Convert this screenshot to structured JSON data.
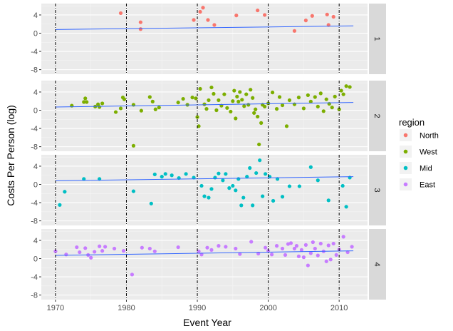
{
  "chart_data": {
    "type": "scatter",
    "title": "",
    "xlabel": "Event Year",
    "ylabel": "Costs Per Person (log)",
    "xlim": [
      1968,
      2014
    ],
    "ylim": [
      -9,
      6.5
    ],
    "x_ticks": [
      1970,
      1980,
      1990,
      2000,
      2010
    ],
    "y_ticks": [
      -8,
      -4,
      0,
      4
    ],
    "x_tick_labels": [
      "1970",
      "1980",
      "1990",
      "2000",
      "2010"
    ],
    "y_tick_labels": [
      "-8",
      "-4",
      "0",
      "4"
    ],
    "vlines": [
      1970,
      1980,
      1990,
      2000,
      2010
    ],
    "grid": true,
    "legend": {
      "title": "region",
      "placement": "right",
      "entries": [
        {
          "label": "North",
          "color": "#F8766D"
        },
        {
          "label": "West",
          "color": "#7CAE00"
        },
        {
          "label": "Mid",
          "color": "#00BFC4"
        },
        {
          "label": "East",
          "color": "#C77CFF"
        }
      ]
    },
    "panels": [
      {
        "label": "1",
        "region": "North",
        "color": "#F8766D",
        "trend": {
          "x": [
            1970,
            2012
          ],
          "y": [
            0.8,
            1.6
          ]
        },
        "points": [
          [
            1979.2,
            4.4
          ],
          [
            1982,
            2.4
          ],
          [
            1982,
            0.9
          ],
          [
            1989.5,
            2.9
          ],
          [
            1990.4,
            4.7
          ],
          [
            1990.8,
            5.6
          ],
          [
            1991.5,
            2.9
          ],
          [
            1992.4,
            1.8
          ],
          [
            1995.5,
            3.9
          ],
          [
            1998.5,
            5.0
          ],
          [
            1999.5,
            4.0
          ],
          [
            2003.7,
            0.5
          ],
          [
            2005.3,
            2.8
          ],
          [
            2006.2,
            3.8
          ],
          [
            2008.3,
            4.1
          ],
          [
            2008.5,
            1.8
          ],
          [
            2009.2,
            3.6
          ]
        ]
      },
      {
        "label": "2",
        "region": "West",
        "color": "#7CAE00",
        "trend": {
          "x": [
            1970,
            2012
          ],
          "y": [
            0.7,
            1.7
          ]
        },
        "points": [
          [
            1972.3,
            1.0
          ],
          [
            1974.0,
            1.8
          ],
          [
            1974.2,
            2.6
          ],
          [
            1974.4,
            1.8
          ],
          [
            1975.6,
            0.8
          ],
          [
            1976.0,
            1.3
          ],
          [
            1976.2,
            0.7
          ],
          [
            1976.6,
            1.5
          ],
          [
            1978.5,
            -0.4
          ],
          [
            1979.2,
            0.4
          ],
          [
            1979.5,
            2.8
          ],
          [
            1979.7,
            2.4
          ],
          [
            1981.0,
            -7.8
          ],
          [
            1981.0,
            1.2
          ],
          [
            1982.1,
            -0.1
          ],
          [
            1983.3,
            2.9
          ],
          [
            1983.7,
            1.9
          ],
          [
            1984.1,
            0.2
          ],
          [
            1984.6,
            0.6
          ],
          [
            1987.3,
            1.7
          ],
          [
            1988.0,
            2.5
          ],
          [
            1988.6,
            1.2
          ],
          [
            1989.3,
            2.8
          ],
          [
            1989.8,
            2.6
          ],
          [
            1990.0,
            -1.5
          ],
          [
            1990.2,
            -3.5
          ],
          [
            1990.4,
            4.7
          ],
          [
            1991.0,
            1.3
          ],
          [
            1991.3,
            0.3
          ],
          [
            1991.6,
            2.2
          ],
          [
            1992.0,
            5.0
          ],
          [
            1992.3,
            3.6
          ],
          [
            1992.7,
            0.0
          ],
          [
            1993.0,
            2.2
          ],
          [
            1993.4,
            1.0
          ],
          [
            1993.8,
            3.5
          ],
          [
            1994.2,
            0.5
          ],
          [
            1994.7,
            -0.3
          ],
          [
            1995.0,
            2.0
          ],
          [
            1995.2,
            4.3
          ],
          [
            1995.4,
            -1.8
          ],
          [
            1995.6,
            3.0
          ],
          [
            1995.8,
            1.9
          ],
          [
            1996.0,
            4.0
          ],
          [
            1996.3,
            2.3
          ],
          [
            1996.6,
            0.9
          ],
          [
            1996.9,
            3.5
          ],
          [
            1997.2,
            1.2
          ],
          [
            1997.5,
            4.5
          ],
          [
            1997.8,
            2.7
          ],
          [
            1998.0,
            -0.6
          ],
          [
            1998.2,
            0.2
          ],
          [
            1998.5,
            -1.4
          ],
          [
            1998.7,
            -7.5
          ],
          [
            1999.0,
            -2.8
          ],
          [
            1999.2,
            1.2
          ],
          [
            1999.5,
            0.8
          ],
          [
            2000.0,
            1.5
          ],
          [
            2000.6,
            3.9
          ],
          [
            2001.2,
            0.3
          ],
          [
            2001.6,
            2.9
          ],
          [
            2002.0,
            1.1
          ],
          [
            2002.6,
            -3.5
          ],
          [
            2003.0,
            2.2
          ],
          [
            2003.7,
            1.3
          ],
          [
            2004.3,
            2.8
          ],
          [
            2005.0,
            0.4
          ],
          [
            2005.6,
            3.3
          ],
          [
            2006.0,
            1.9
          ],
          [
            2006.6,
            2.9
          ],
          [
            2007.0,
            0.8
          ],
          [
            2007.4,
            3.7
          ],
          [
            2007.8,
            -0.2
          ],
          [
            2008.2,
            2.4
          ],
          [
            2008.6,
            1.4
          ],
          [
            2009.0,
            0.6
          ],
          [
            2009.4,
            3.0
          ],
          [
            2010.0,
            0.2
          ],
          [
            2010.3,
            4.3
          ],
          [
            2010.6,
            3.5
          ],
          [
            2011.0,
            5.3
          ],
          [
            2011.5,
            5.1
          ]
        ]
      },
      {
        "label": "3",
        "region": "Mid",
        "color": "#00BFC4",
        "trend": {
          "x": [
            1970,
            2012
          ],
          "y": [
            0.8,
            1.7
          ]
        },
        "points": [
          [
            1970.6,
            -4.5
          ],
          [
            1971.3,
            -1.6
          ],
          [
            1974.0,
            1.2
          ],
          [
            1976.2,
            1.2
          ],
          [
            1981.0,
            -1.5
          ],
          [
            1983.5,
            -4.2
          ],
          [
            1984.0,
            2.2
          ],
          [
            1985.0,
            1.7
          ],
          [
            1985.5,
            2.3
          ],
          [
            1986.4,
            2.0
          ],
          [
            1987.4,
            1.4
          ],
          [
            1988.4,
            2.3
          ],
          [
            1989.5,
            1.5
          ],
          [
            1990.6,
            -0.3
          ],
          [
            1991.0,
            -2.6
          ],
          [
            1991.6,
            -2.9
          ],
          [
            1992.0,
            -1.0
          ],
          [
            1992.5,
            1.5
          ],
          [
            1993.0,
            2.4
          ],
          [
            1993.6,
            0.9
          ],
          [
            1994.0,
            2.3
          ],
          [
            1994.5,
            -0.8
          ],
          [
            1995.0,
            -0.3
          ],
          [
            1995.4,
            -1.3
          ],
          [
            1995.8,
            1.2
          ],
          [
            1996.2,
            -4.6
          ],
          [
            1996.5,
            -2.9
          ],
          [
            1997.0,
            1.7
          ],
          [
            1997.4,
            3.6
          ],
          [
            1997.8,
            -4.6
          ],
          [
            1998.3,
            2.5
          ],
          [
            1998.8,
            5.3
          ],
          [
            1999.2,
            -2.6
          ],
          [
            1999.6,
            2.3
          ],
          [
            2000.2,
            1.7
          ],
          [
            2000.7,
            -3.6
          ],
          [
            2001.3,
            1.2
          ],
          [
            2002.0,
            -2.7
          ],
          [
            2003.0,
            -0.4
          ],
          [
            2004.4,
            -0.4
          ],
          [
            2006.0,
            3.8
          ],
          [
            2007.0,
            0.9
          ],
          [
            2008.5,
            -3.5
          ],
          [
            2010.5,
            -0.3
          ],
          [
            2011.0,
            -4.9
          ],
          [
            2011.5,
            1.5
          ]
        ]
      },
      {
        "label": "4",
        "region": "East",
        "color": "#C77CFF",
        "trend": {
          "x": [
            1970,
            2012
          ],
          "y": [
            0.7,
            1.7
          ]
        },
        "points": [
          [
            1970.0,
            1.6
          ],
          [
            1971.5,
            0.9
          ],
          [
            1973.0,
            2.5
          ],
          [
            1973.4,
            1.4
          ],
          [
            1974.2,
            2.3
          ],
          [
            1974.6,
            0.8
          ],
          [
            1975.0,
            0.2
          ],
          [
            1975.5,
            1.5
          ],
          [
            1976.2,
            2.7
          ],
          [
            1976.6,
            1.7
          ],
          [
            1977.0,
            2.6
          ],
          [
            1978.3,
            2.2
          ],
          [
            1979.6,
            1.7
          ],
          [
            1980.8,
            -3.5
          ],
          [
            1982.2,
            2.4
          ],
          [
            1983.3,
            2.2
          ],
          [
            1984.0,
            1.6
          ],
          [
            1987.3,
            2.5
          ],
          [
            1990.2,
            1.6
          ],
          [
            1990.6,
            0.9
          ],
          [
            1991.4,
            2.4
          ],
          [
            1992.0,
            1.9
          ],
          [
            1993.0,
            2.8
          ],
          [
            1994.0,
            2.6
          ],
          [
            1995.4,
            2.2
          ],
          [
            1996.0,
            1.0
          ],
          [
            1997.6,
            3.7
          ],
          [
            1998.6,
            1.1
          ],
          [
            1999.6,
            2.4
          ],
          [
            2000.0,
            1.7
          ],
          [
            2000.5,
            0.9
          ],
          [
            2001.2,
            2.8
          ],
          [
            2002.0,
            2.2
          ],
          [
            2002.4,
            0.8
          ],
          [
            2002.8,
            3.2
          ],
          [
            2003.2,
            3.4
          ],
          [
            2003.7,
            2.2
          ],
          [
            2004.0,
            2.8
          ],
          [
            2004.3,
            0.5
          ],
          [
            2004.7,
            1.9
          ],
          [
            2005.0,
            0.3
          ],
          [
            2005.3,
            3.0
          ],
          [
            2005.6,
            -1.5
          ],
          [
            2006.0,
            1.2
          ],
          [
            2006.3,
            3.6
          ],
          [
            2006.6,
            2.2
          ],
          [
            2007.0,
            0.7
          ],
          [
            2007.4,
            3.3
          ],
          [
            2007.8,
            1.6
          ],
          [
            2008.2,
            -0.6
          ],
          [
            2008.5,
            2.9
          ],
          [
            2008.8,
            -0.2
          ],
          [
            2009.2,
            3.3
          ],
          [
            2009.6,
            0.8
          ],
          [
            2010.0,
            2.0
          ],
          [
            2010.6,
            4.8
          ],
          [
            2011.2,
            1.4
          ],
          [
            2011.8,
            2.6
          ]
        ]
      }
    ]
  }
}
